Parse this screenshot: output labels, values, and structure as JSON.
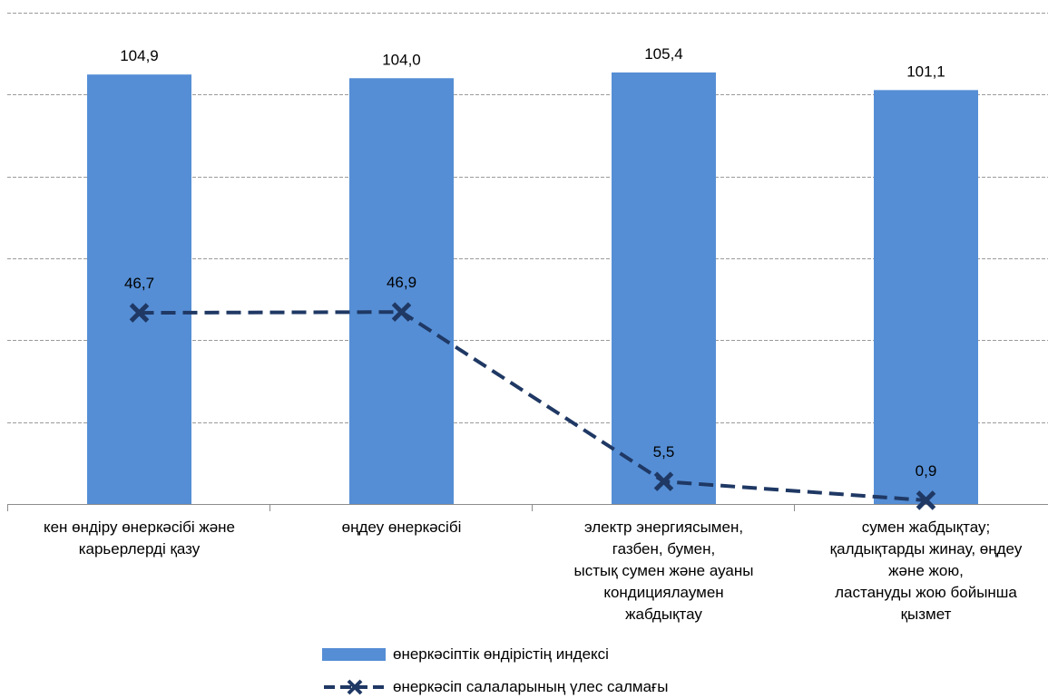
{
  "chart_data": {
    "type": "bar",
    "categories": [
      "кен өндіру өнеркәсібі және\nкарьерлерді қазу",
      "өңдеу өнеркәсібі",
      "электр энергиясымен,\nгазбен, бумен,\nыстық сумен және ауаны\nкондициялаумен\nжабдықтау",
      "сумен жабдықтау;\nқалдықтарды жинау, өңдеу\nжәне жою,\nластануды жою бойынша\nқызмет"
    ],
    "series": [
      {
        "name": "өнеркәсіптік өндірістің индексі",
        "type": "bar",
        "color": "#558ed5",
        "values": [
          104.9,
          104.0,
          105.4,
          101.1
        ],
        "labels": [
          "104,9",
          "104,0",
          "105,4",
          "101,1"
        ]
      },
      {
        "name": "өнеркәсіп салаларының үлес салмағы",
        "type": "line",
        "style": "dashed",
        "marker": "x",
        "color": "#1f3864",
        "values": [
          46.7,
          46.9,
          5.5,
          0.9
        ],
        "labels": [
          "46,7",
          "46,9",
          "5,5",
          "0,9"
        ]
      }
    ],
    "ylim": [
      0,
      120
    ],
    "grid": true,
    "legend_position": "bottom"
  }
}
